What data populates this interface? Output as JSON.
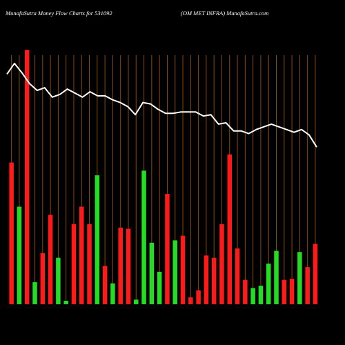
{
  "header": {
    "left": "MunafaSutra  Money Flow  Charts for 531092",
    "right": "(OM MET INFRA) MunafaSutra.com"
  },
  "colors": {
    "background": "#000000",
    "gridline": "#8b4a0e",
    "buy": "#22dd22",
    "sell": "#ff1a1a",
    "price_line": "#ffffff",
    "tick_text": "#ffffff"
  },
  "chart_data": {
    "type": "bar",
    "title": "",
    "xlabel": "",
    "ylabel": "",
    "bars": [
      {
        "label": "",
        "value": 122,
        "color": "sell"
      },
      {
        "label": "",
        "value": 84,
        "color": "buy"
      },
      {
        "label": "",
        "value": 219,
        "color": "sell"
      },
      {
        "label": "",
        "value": 19,
        "color": "buy"
      },
      {
        "label": "",
        "value": 44,
        "color": "sell"
      },
      {
        "label": "",
        "value": 77,
        "color": "sell"
      },
      {
        "label": "",
        "value": 40,
        "color": "buy"
      },
      {
        "label": "",
        "value": 3,
        "color": "buy"
      },
      {
        "label": "",
        "value": 69,
        "color": "sell"
      },
      {
        "label": "",
        "value": 84,
        "color": "sell"
      },
      {
        "label": "",
        "value": 69,
        "color": "sell"
      },
      {
        "label": "",
        "value": 111,
        "color": "buy"
      },
      {
        "label": "",
        "value": 33,
        "color": "sell"
      },
      {
        "label": "",
        "value": 18,
        "color": "buy"
      },
      {
        "label": "",
        "value": 66,
        "color": "sell"
      },
      {
        "label": "",
        "value": 65,
        "color": "sell"
      },
      {
        "label": "",
        "value": 4,
        "color": "buy"
      },
      {
        "label": "",
        "value": 115,
        "color": "buy"
      },
      {
        "label": "",
        "value": 53,
        "color": "buy"
      },
      {
        "label": "",
        "value": 28,
        "color": "buy"
      },
      {
        "label": "",
        "value": 95,
        "color": "sell"
      },
      {
        "label": "",
        "value": 55,
        "color": "buy"
      },
      {
        "label": "",
        "value": 59,
        "color": "sell"
      },
      {
        "label": "",
        "value": 6,
        "color": "sell"
      },
      {
        "label": "",
        "value": 12,
        "color": "sell"
      },
      {
        "label": "",
        "value": 42,
        "color": "sell"
      },
      {
        "label": "",
        "value": 40,
        "color": "sell"
      },
      {
        "label": "",
        "value": 69,
        "color": "sell"
      },
      {
        "label": "",
        "value": 129,
        "color": "sell"
      },
      {
        "label": "",
        "value": 48,
        "color": "sell"
      },
      {
        "label": "",
        "value": 21,
        "color": "sell"
      },
      {
        "label": "",
        "value": 14,
        "color": "buy"
      },
      {
        "label": "",
        "value": 16,
        "color": "buy"
      },
      {
        "label": "",
        "value": 35,
        "color": "buy"
      },
      {
        "label": "",
        "value": 46,
        "color": "buy"
      },
      {
        "label": "",
        "value": 21,
        "color": "sell"
      },
      {
        "label": "",
        "value": 22,
        "color": "sell"
      },
      {
        "label": "",
        "value": 45,
        "color": "buy"
      },
      {
        "label": "",
        "value": 32,
        "color": "sell"
      },
      {
        "label": "",
        "value": 52,
        "color": "sell"
      }
    ],
    "price_line": [
      330,
      338,
      331,
      323,
      318,
      320,
      313,
      315,
      319,
      316,
      313,
      317,
      314,
      314,
      311,
      309,
      306,
      300,
      309,
      308,
      304,
      301,
      301,
      302,
      302,
      302,
      299,
      300,
      293,
      294,
      288,
      288,
      286,
      289,
      291,
      293,
      291,
      289,
      287,
      289,
      285,
      276
    ],
    "bars_ylim": [
      0,
      250
    ],
    "price_ylim": [
      160,
      340
    ],
    "grid": true,
    "tick_labels_note": "x tick labels are illegible in the image"
  }
}
